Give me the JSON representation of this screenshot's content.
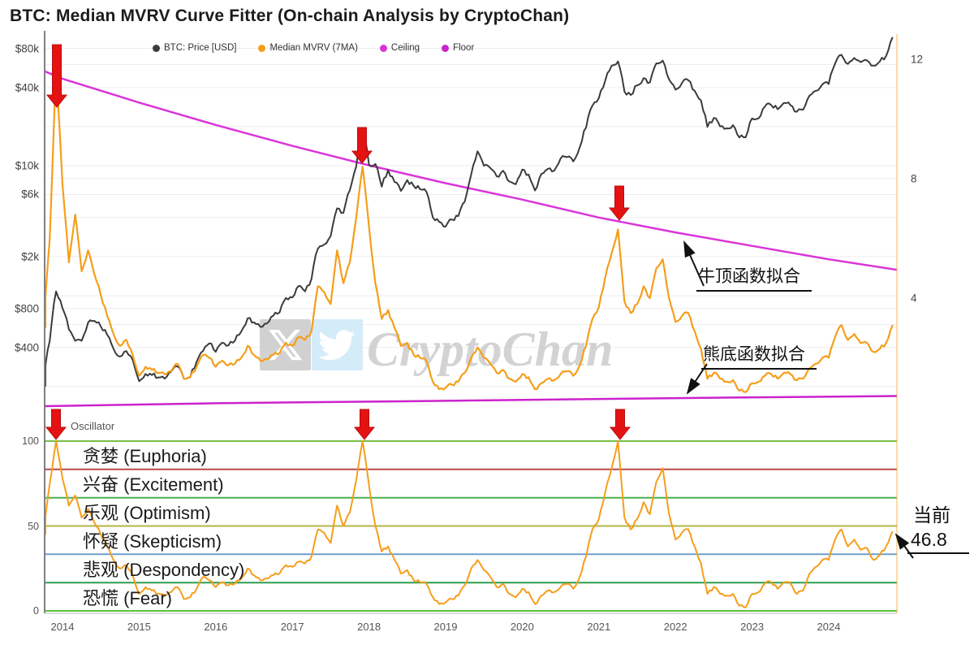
{
  "header": {
    "title": "BTC: Median MVRV Curve Fitter (On-chain Analysis by CryptoChan)"
  },
  "legend": {
    "items": [
      {
        "label": "BTC: Price [USD]",
        "color": "#3b3b3b"
      },
      {
        "label": "Median MVRV (7MA)",
        "color": "#F59E1B"
      },
      {
        "label": "Ceiling",
        "color": "#D935D9"
      },
      {
        "label": "Floor",
        "color": "#CC22CC"
      }
    ]
  },
  "axes": {
    "price_ticks": [
      {
        "label": "$80k",
        "value": 80000
      },
      {
        "label": "$40k",
        "value": 40000
      },
      {
        "label": "$10k",
        "value": 10000
      },
      {
        "label": "$6k",
        "value": 6000
      },
      {
        "label": "$2k",
        "value": 2000
      },
      {
        "label": "$800",
        "value": 800
      },
      {
        "label": "$400",
        "value": 400
      }
    ],
    "mvrv_ticks": [
      {
        "label": "12",
        "value": 12
      },
      {
        "label": "8",
        "value": 8
      },
      {
        "label": "4",
        "value": 4
      }
    ],
    "oscillator_ticks": [
      {
        "label": "100",
        "value": 100
      },
      {
        "label": "50",
        "value": 50
      },
      {
        "label": "0",
        "value": 0
      }
    ],
    "year_ticks": [
      "2014",
      "2015",
      "2016",
      "2017",
      "2018",
      "2019",
      "2020",
      "2021",
      "2022",
      "2023",
      "2024"
    ]
  },
  "oscillator_panel": {
    "label": "Oscillator",
    "levels": [
      {
        "value": 100,
        "color": "#76C043"
      },
      {
        "value": 83.33,
        "color": "#B94A48"
      },
      {
        "value": 66.67,
        "color": "#4CAF50"
      },
      {
        "value": 50,
        "color": "#B3B545"
      },
      {
        "value": 33.33,
        "color": "#6F9FCB"
      },
      {
        "value": 16.67,
        "color": "#2E9E4E"
      },
      {
        "value": 0,
        "color": "#5BC23B"
      }
    ],
    "band_labels": [
      "贪婪 (Euphoria)",
      "兴奋 (Excitement)",
      "乐观 (Optimism)",
      "怀疑 (Skepticism)",
      "悲观 (Despondency)",
      "恐慌 (Fear)"
    ]
  },
  "annotations": {
    "bull_top": "牛顶函数拟合",
    "bear_bottom": "熊底函数拟合",
    "current_label": "当前",
    "current_value": "46.8",
    "arrow_color": "#E51212"
  },
  "watermark": {
    "text": "CryptoChan",
    "icons": [
      "x-logo",
      "twitter-bird"
    ]
  },
  "chart_data": {
    "type": "line",
    "title": "BTC: Median MVRV Curve Fitter (On-chain Analysis by CryptoChan)",
    "interval": "monthly",
    "x_start": "2013-10",
    "x_end": "2024-11",
    "price_axis": {
      "scale": "log",
      "tick_values": [
        80000,
        40000,
        10000,
        6000,
        2000,
        800,
        400
      ],
      "grid_values": [
        80000,
        60000,
        40000,
        20000,
        10000,
        8000,
        6000,
        4000,
        2000,
        1000,
        800,
        600,
        400,
        200
      ]
    },
    "mvrv_axis": {
      "scale": "linear",
      "tick_values": [
        12,
        8,
        4
      ]
    },
    "oscillator_axis": {
      "range": [
        0,
        100
      ]
    },
    "series": [
      {
        "name": "BTC: Price [USD]",
        "color": "#3b3b3b",
        "values": [
          200,
          450,
          1080,
          800,
          550,
          450,
          450,
          620,
          640,
          580,
          500,
          390,
          340,
          375,
          320,
          220,
          250,
          245,
          235,
          230,
          260,
          285,
          230,
          235,
          310,
          375,
          430,
          370,
          435,
          415,
          450,
          530,
          670,
          625,
          575,
          610,
          700,
          745,
          960,
          970,
          1190,
          1080,
          1350,
          2300,
          2480,
          2875,
          4700,
          4340,
          6470,
          9900,
          19000,
          10200,
          10300,
          6900,
          9250,
          7500,
          6400,
          7750,
          7000,
          6600,
          6300,
          4000,
          3700,
          3400,
          3850,
          4100,
          5300,
          8550,
          12900,
          10000,
          9600,
          8300,
          9150,
          7550,
          7200,
          9350,
          8550,
          6450,
          8650,
          9450,
          9150,
          11350,
          11650,
          10800,
          13800,
          19700,
          29000,
          33100,
          45200,
          58800,
          63500,
          37300,
          35000,
          41500,
          47150,
          43800,
          61300,
          64400,
          46200,
          38500,
          43200,
          45500,
          37700,
          31800,
          19900,
          23300,
          20050,
          19400,
          20500,
          16500,
          16550,
          23100,
          23150,
          28500,
          29250,
          27200,
          30450,
          29250,
          26000,
          26950,
          34650,
          37700,
          42250,
          42550,
          61150,
          71300,
          60650,
          67500,
          62700,
          64600,
          59000,
          63300,
          70200,
          97500
        ]
      },
      {
        "name": "Median MVRV (7MA)",
        "color": "#F59E1B",
        "values": [
          3.0,
          6.0,
          11.8,
          7.8,
          5.2,
          6.8,
          4.9,
          5.6,
          4.8,
          4.1,
          3.4,
          2.8,
          2.4,
          2.6,
          2.1,
          1.4,
          1.7,
          1.6,
          1.5,
          1.45,
          1.55,
          1.8,
          1.3,
          1.35,
          1.7,
          2.1,
          2.0,
          1.7,
          1.9,
          1.75,
          1.8,
          2.0,
          2.4,
          2.1,
          1.9,
          1.95,
          2.1,
          2.15,
          2.5,
          2.4,
          2.7,
          2.6,
          2.9,
          4.4,
          4.2,
          3.8,
          5.6,
          4.5,
          5.2,
          6.7,
          8.4,
          6.4,
          4.5,
          3.3,
          3.6,
          3.0,
          2.4,
          2.5,
          2.1,
          2.0,
          1.9,
          1.2,
          0.95,
          1.0,
          1.1,
          1.2,
          1.5,
          2.0,
          2.35,
          2.0,
          1.8,
          1.5,
          1.6,
          1.3,
          1.2,
          1.45,
          1.35,
          0.95,
          1.15,
          1.3,
          1.25,
          1.45,
          1.55,
          1.4,
          1.75,
          2.4,
          3.3,
          3.7,
          4.7,
          5.5,
          6.3,
          3.9,
          3.5,
          3.8,
          4.4,
          4.0,
          5.0,
          5.3,
          4.0,
          3.2,
          3.4,
          3.5,
          2.9,
          2.3,
          1.3,
          1.5,
          1.3,
          1.2,
          1.25,
          0.9,
          0.85,
          1.15,
          1.2,
          1.4,
          1.45,
          1.3,
          1.5,
          1.45,
          1.25,
          1.3,
          1.65,
          1.8,
          2.0,
          2.0,
          2.7,
          3.1,
          2.6,
          2.8,
          2.5,
          2.5,
          2.2,
          2.3,
          2.5,
          3.1
        ]
      },
      {
        "name": "Oscillator",
        "color": "#F59E1B",
        "values": [
          45,
          75,
          100,
          78,
          62,
          68,
          55,
          60,
          52,
          45,
          38,
          30,
          25,
          27,
          21,
          10,
          14,
          12,
          10,
          9,
          11,
          14,
          7,
          8,
          13,
          20,
          18,
          14,
          17,
          15,
          16,
          19,
          25,
          21,
          18,
          19,
          21,
          22,
          27,
          26,
          29,
          28,
          32,
          48,
          46,
          40,
          62,
          50,
          58,
          77,
          100,
          74,
          50,
          35,
          38,
          30,
          22,
          24,
          18,
          17,
          16,
          8,
          4,
          5,
          7,
          9,
          15,
          25,
          30,
          24,
          20,
          14,
          16,
          10,
          8,
          13,
          11,
          4,
          9,
          12,
          11,
          14,
          16,
          13,
          20,
          32,
          48,
          54,
          70,
          84,
          100,
          55,
          48,
          54,
          64,
          57,
          76,
          84,
          57,
          42,
          46,
          48,
          38,
          28,
          10,
          14,
          10,
          9,
          10,
          3,
          2,
          10,
          11,
          16,
          17,
          13,
          17,
          16,
          10,
          12,
          22,
          26,
          30,
          30,
          42,
          48,
          38,
          42,
          36,
          37,
          30,
          33,
          38,
          46.8
        ]
      }
    ],
    "ceiling_fit": {
      "name": "Ceiling",
      "color": "#D935D9",
      "x": [
        2013.75,
        2014,
        2015,
        2016,
        2017,
        2018,
        2019,
        2020,
        2021,
        2022,
        2023,
        2024,
        2024.9
      ],
      "v": [
        11.6,
        11.35,
        10.55,
        9.8,
        9.1,
        8.45,
        7.85,
        7.3,
        6.7,
        6.2,
        5.75,
        5.3,
        4.95
      ]
    },
    "floor_fit": {
      "name": "Floor",
      "color": "#CC22CC",
      "x": [
        2013.75,
        2016,
        2019,
        2022,
        2024.9
      ],
      "v": [
        0.38,
        0.48,
        0.56,
        0.65,
        0.72
      ]
    },
    "marked_peaks": [
      "2013-12",
      "2017-12",
      "2021-04"
    ],
    "current_oscillator": 46.8
  }
}
